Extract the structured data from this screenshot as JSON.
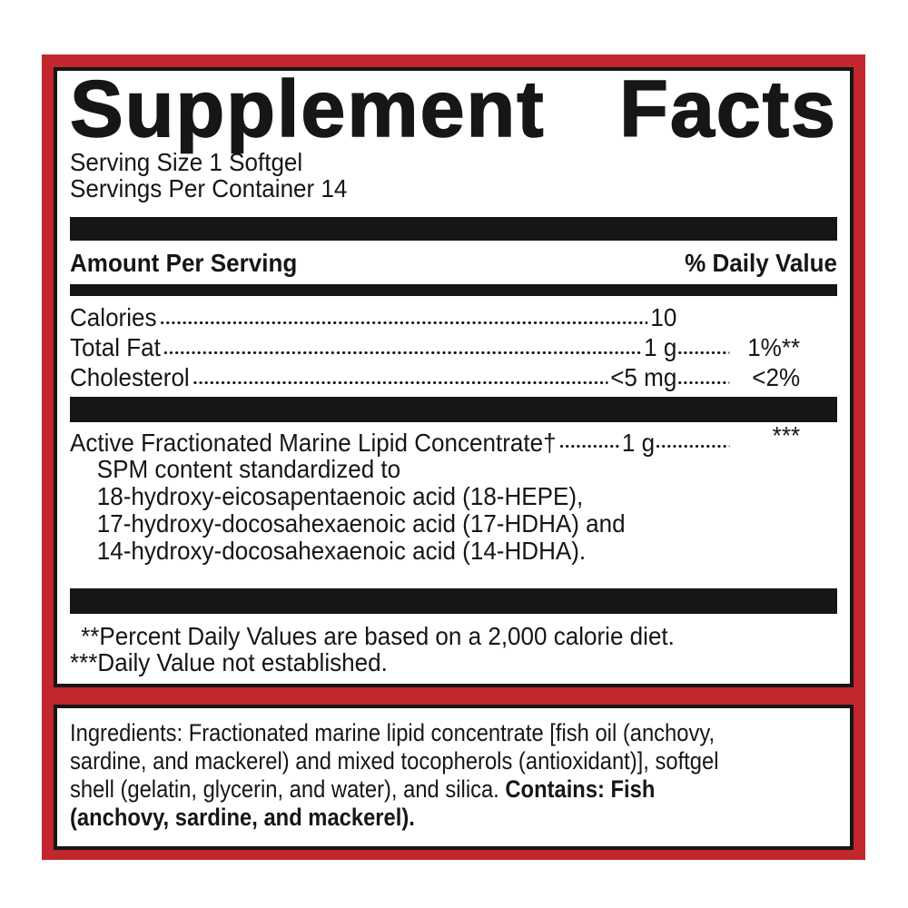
{
  "colors": {
    "border_red": "#C1272D",
    "text_black": "#161616",
    "background": "#ffffff"
  },
  "panel": {
    "title": "Supplement Facts",
    "serving_size": "Serving Size 1 Softgel",
    "servings_per_container": "Servings Per Container 14",
    "columns": {
      "amount_header": "Amount Per Serving",
      "daily_value_header": "% Daily Value"
    },
    "rows": [
      {
        "name": "Calories",
        "amount": "10",
        "dv": ""
      },
      {
        "name": "Total Fat",
        "amount": "1 g",
        "dv": "1%**"
      },
      {
        "name": "Cholesterol",
        "amount": "<5 mg",
        "dv": "<2%"
      }
    ],
    "active_row": {
      "name": "Active Fractionated Marine Lipid Concentrate†",
      "amount": "1 g",
      "dv": "***"
    },
    "sub_lines": [
      "SPM content standardized to",
      "18-hydroxy-eicosapentaenoic acid (18-HEPE),",
      "17-hydroxy-docosahexaenoic acid (17-HDHA) and",
      "14-hydroxy-docosahexaenoic acid (14-HDHA)."
    ],
    "footnotes": [
      "**Percent Daily Values are based on a 2,000 calorie diet.",
      "***Daily Value not established."
    ]
  },
  "ingredients": {
    "lines": [
      {
        "text": "Ingredients: Fractionated marine lipid concentrate [fish oil (anchovy,"
      },
      {
        "text": "sardine, and mackerel) and mixed tocopherols (antioxidant)], softgel"
      },
      {
        "text": "shell (gelatin, glycerin, and water), and silica. ",
        "bold": "Contains: Fish"
      },
      {
        "bold": "(anchovy, sardine, and mackerel)."
      }
    ]
  }
}
